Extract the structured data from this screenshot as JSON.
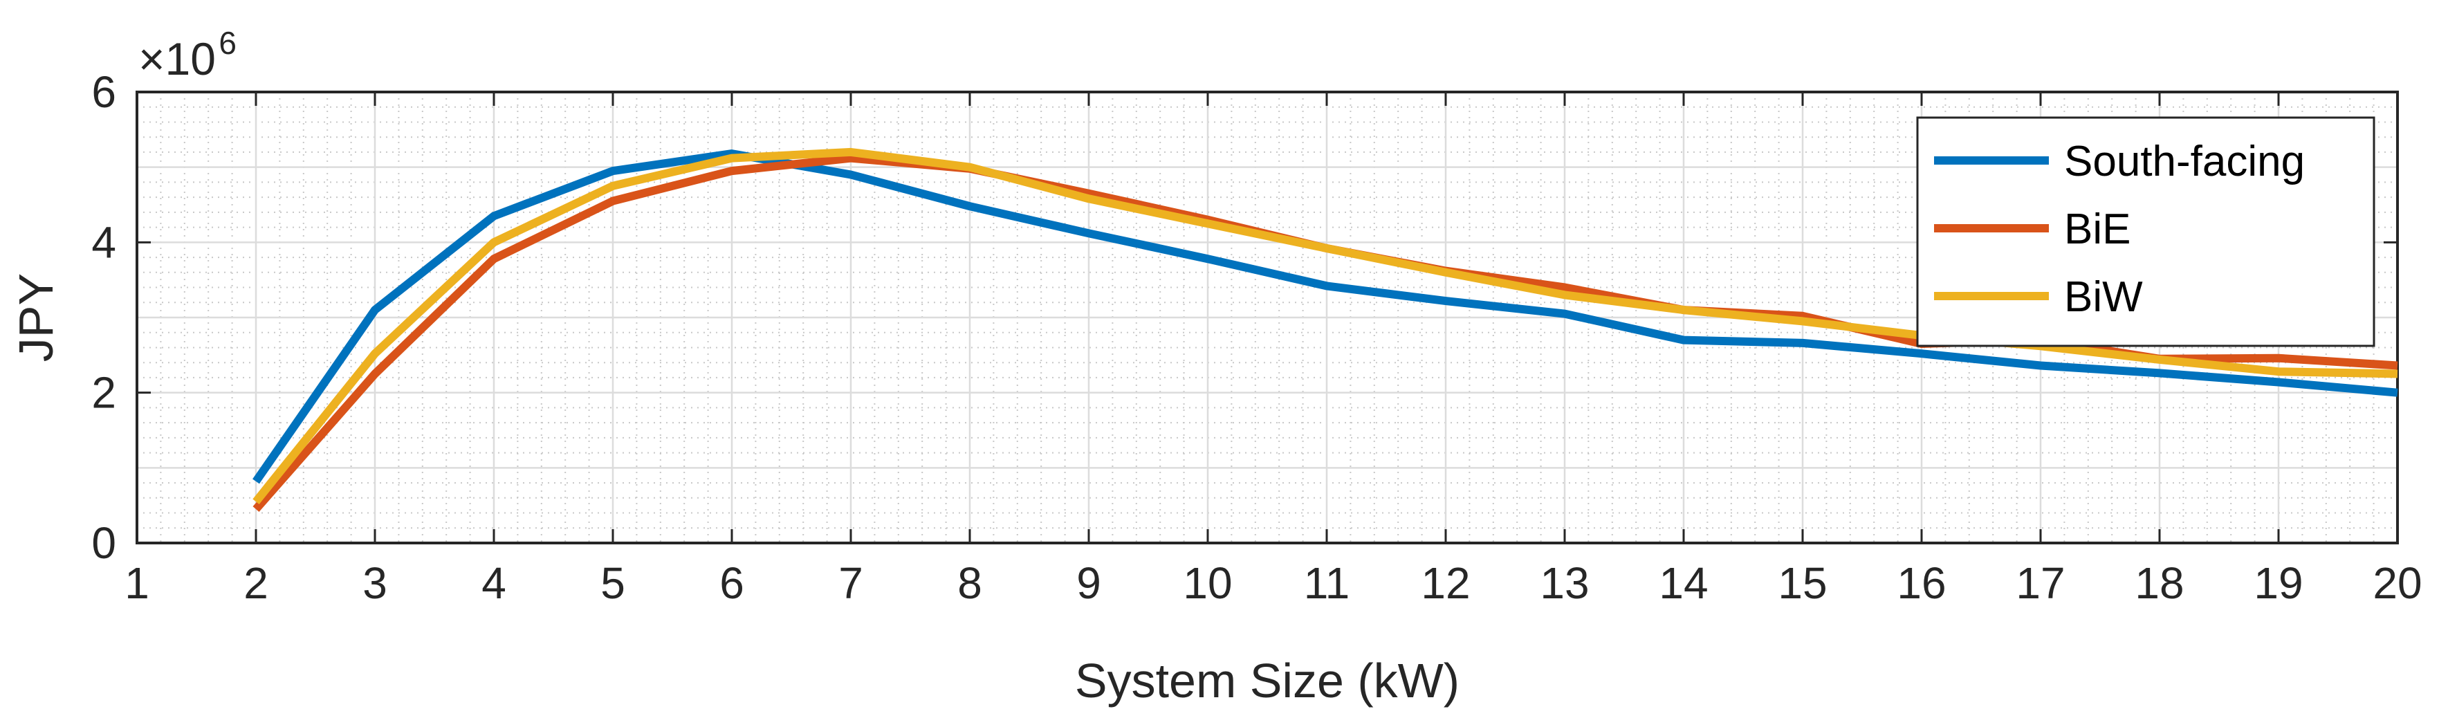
{
  "chart_data": {
    "type": "line",
    "xlabel": "System Size (kW)",
    "ylabel": "JPY",
    "y_exponent": {
      "prefix": "×10",
      "power": "6"
    },
    "xlim": [
      1,
      20
    ],
    "ylim": [
      0,
      6
    ],
    "x_ticks": [
      1,
      2,
      3,
      4,
      5,
      6,
      7,
      8,
      9,
      10,
      11,
      12,
      13,
      14,
      15,
      16,
      17,
      18,
      19,
      20
    ],
    "y_ticks": [
      0,
      2,
      4,
      6
    ],
    "grid": true,
    "minor_grid": true,
    "legend_position": "top-right",
    "x": [
      2,
      3,
      4,
      5,
      6,
      7,
      8,
      9,
      10,
      11,
      12,
      13,
      14,
      15,
      16,
      17,
      18,
      19,
      20
    ],
    "series": [
      {
        "name": "South-facing",
        "color": "#0072BD",
        "values": [
          0.82,
          3.1,
          4.35,
          4.95,
          5.18,
          4.9,
          4.48,
          4.12,
          3.78,
          3.42,
          3.22,
          3.05,
          2.7,
          2.66,
          2.52,
          2.36,
          2.26,
          2.14,
          2.0
        ]
      },
      {
        "name": "BiE",
        "color": "#D95319",
        "values": [
          0.45,
          2.25,
          3.78,
          4.55,
          4.95,
          5.12,
          4.98,
          4.65,
          4.3,
          3.92,
          3.62,
          3.4,
          3.1,
          3.02,
          2.65,
          2.7,
          2.45,
          2.46,
          2.36
        ]
      },
      {
        "name": "BiW",
        "color": "#EDB120",
        "values": [
          0.55,
          2.52,
          4.0,
          4.75,
          5.12,
          5.2,
          5.0,
          4.58,
          4.25,
          3.92,
          3.6,
          3.3,
          3.1,
          2.95,
          2.76,
          2.62,
          2.44,
          2.28,
          2.25
        ]
      }
    ]
  }
}
